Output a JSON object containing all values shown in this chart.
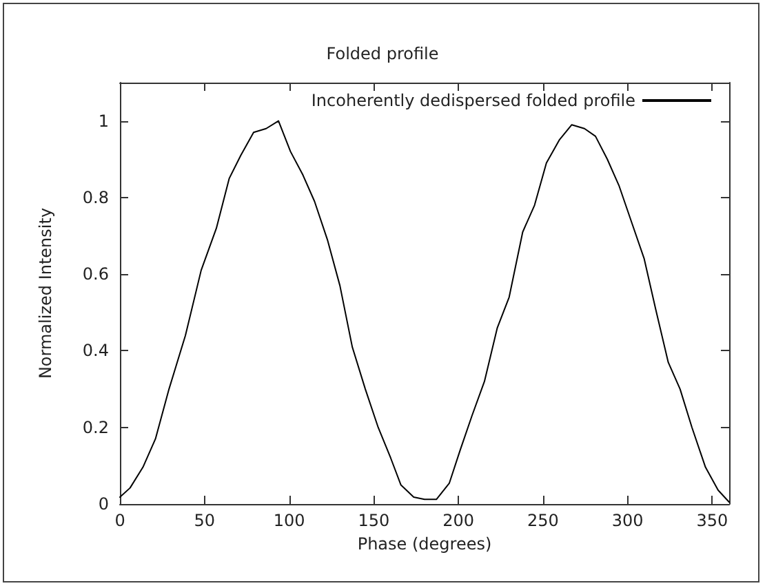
{
  "chart_data": {
    "type": "line",
    "title": "Folded profile",
    "xlabel": "Phase (degrees)",
    "ylabel": "Normalized Intensity",
    "series": [
      {
        "name": "Incoherently dedispersed folded profile",
        "color": "#000000",
        "x": [
          0,
          6,
          13.6,
          21,
          29,
          38.7,
          48,
          57,
          64.6,
          71.4,
          79,
          86.4,
          93.7,
          100.8,
          108,
          115,
          122.6,
          130,
          137.3,
          145,
          152.6,
          160,
          166,
          173.6,
          180,
          187,
          194.6,
          201,
          208,
          215.4,
          223,
          230,
          238,
          245,
          252,
          259.6,
          267,
          274.5,
          281,
          288,
          295,
          302,
          309.8,
          316.5,
          324,
          331,
          338,
          346,
          353.5,
          360
        ],
        "values": [
          0.018,
          0.042,
          0.096,
          0.17,
          0.3,
          0.44,
          0.61,
          0.72,
          0.85,
          0.91,
          0.97,
          0.98,
          1.0,
          0.92,
          0.86,
          0.79,
          0.69,
          0.57,
          0.41,
          0.3,
          0.2,
          0.12,
          0.05,
          0.018,
          0.012,
          0.012,
          0.054,
          0.14,
          0.23,
          0.32,
          0.46,
          0.54,
          0.71,
          0.78,
          0.89,
          0.95,
          0.99,
          0.98,
          0.96,
          0.9,
          0.83,
          0.74,
          0.64,
          0.51,
          0.37,
          0.3,
          0.2,
          0.096,
          0.036,
          0.005
        ]
      }
    ],
    "xlim": [
      0,
      360
    ],
    "xticks": [
      0,
      50,
      100,
      150,
      200,
      250,
      300,
      350
    ],
    "ylim": [
      0,
      1.1
    ],
    "yticks": [
      0,
      0.2,
      0.4,
      0.6,
      0.8,
      1
    ],
    "grid": false,
    "legend": "top right",
    "marker": "none",
    "line_style": "solid"
  }
}
